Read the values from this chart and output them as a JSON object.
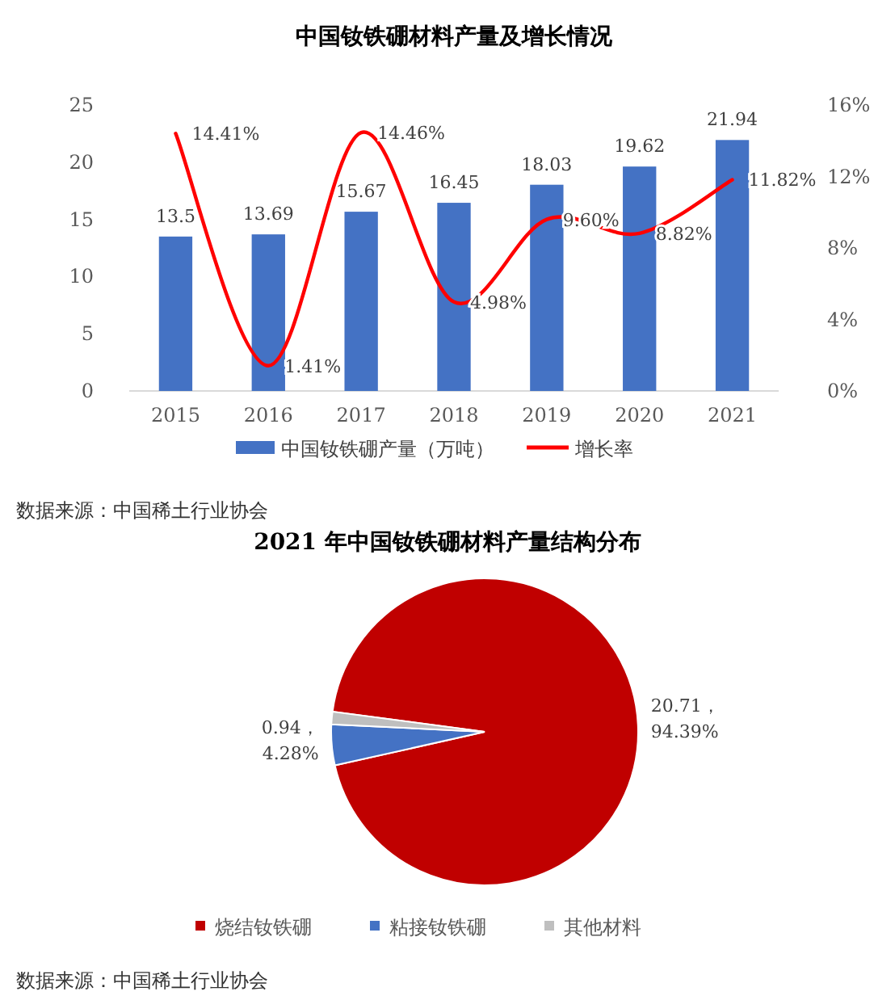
{
  "chart_data": [
    {
      "type": "bar",
      "title": "中国钕铁硼材料产量及增长情况",
      "categories": [
        "2015",
        "2016",
        "2017",
        "2018",
        "2019",
        "2020",
        "2021"
      ],
      "series": [
        {
          "name": "中国钕铁硼产量（万吨）",
          "type": "bar",
          "color": "#4472c4",
          "values": [
            13.5,
            13.69,
            15.67,
            16.45,
            18.03,
            19.62,
            21.94
          ]
        },
        {
          "name": "增长率",
          "type": "line",
          "axis": "y2",
          "color": "#ff0000",
          "values": [
            14.41,
            1.41,
            14.46,
            4.98,
            9.6,
            8.82,
            11.82
          ],
          "value_labels": [
            "14.41%",
            "1.41%",
            "14.46%",
            "4.98%",
            "9.60%",
            "8.82%",
            "11.82%"
          ]
        }
      ],
      "ylim": [
        0,
        25
      ],
      "yticks": [
        0,
        5,
        10,
        15,
        20,
        25
      ],
      "y2lim": [
        0,
        16
      ],
      "y2ticks": [
        {
          "value": 0,
          "label": "0%"
        },
        {
          "value": 4,
          "label": "4%"
        },
        {
          "value": 8,
          "label": "8%"
        },
        {
          "value": 12,
          "label": "12%"
        },
        {
          "value": 16,
          "label": "16%"
        }
      ],
      "data_labels": true,
      "legend": "bottom",
      "grid": false,
      "marker": "none",
      "annotations": [
        "数据来源：中国稀土行业协会"
      ]
    },
    {
      "type": "pie",
      "title": "2021 年中国钕铁硼材料产量结构分布",
      "categories": [
        "烧结钕铁硼",
        "粘接钕铁硼",
        "其他材料"
      ],
      "values": [
        20.71,
        0.94,
        0.29
      ],
      "colors": [
        "#c00000",
        "#4472c4",
        "#bfbfbf"
      ],
      "value_labels": [
        "20.71，94.39%",
        "0.94，4.28%",
        null
      ],
      "legend": "bottom",
      "annotations": [
        "数据来源：中国稀土行业协会"
      ]
    }
  ]
}
